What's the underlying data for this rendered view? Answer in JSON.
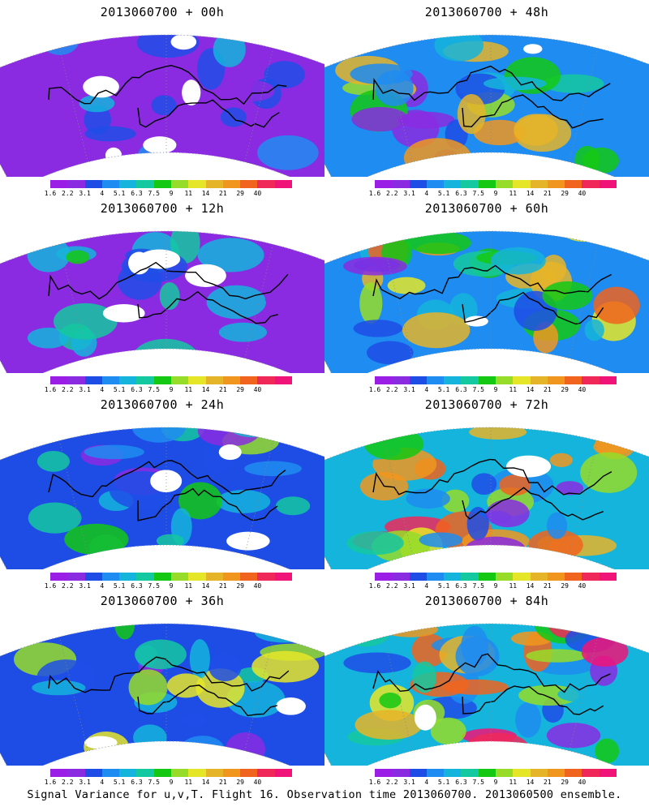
{
  "colorbar": {
    "colors": [
      "#9a1ee6",
      "#8a2be2",
      "#1e4de6",
      "#1e8cf0",
      "#14b4dc",
      "#14c8a0",
      "#14c814",
      "#96dc28",
      "#e6e628",
      "#e6b428",
      "#f0961e",
      "#f0641e",
      "#f0285a",
      "#f01478"
    ],
    "ticks": [
      "1.6",
      "2.2",
      "3.1",
      "4",
      "5.1",
      "6.3",
      "7.5",
      "9",
      "11",
      "14",
      "21",
      "29",
      "40"
    ]
  },
  "panels": [
    {
      "title": "2013060700 + 00h",
      "intensity": 0
    },
    {
      "title": "2013060700 + 48h",
      "intensity": 4
    },
    {
      "title": "2013060700 + 12h",
      "intensity": 1
    },
    {
      "title": "2013060700 + 60h",
      "intensity": 5
    },
    {
      "title": "2013060700 + 24h",
      "intensity": 2
    },
    {
      "title": "2013060700 + 72h",
      "intensity": 6
    },
    {
      "title": "2013060700 + 36h",
      "intensity": 3
    },
    {
      "title": "2013060700 + 84h",
      "intensity": 7
    }
  ],
  "caption": "Signal Variance for u,v,T. Flight 16. Observation time 2013060700. 2013060500 ensemble."
}
